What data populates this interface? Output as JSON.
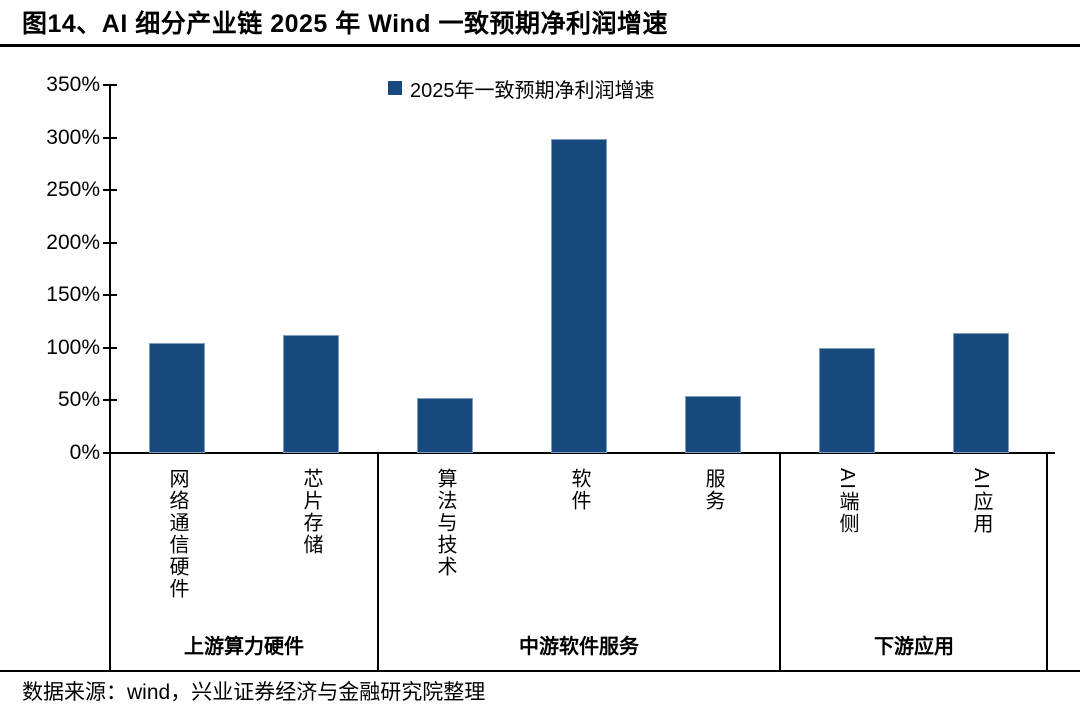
{
  "title": "图14、AI 细分产业链 2025 年 Wind 一致预期净利润增速",
  "source": "数据来源：wind，兴业证券经济与金融研究院整理",
  "colors": {
    "bar": "#17497E",
    "bar_edge": "#7F9FBF",
    "axis": "#000000"
  },
  "chart_data": {
    "type": "bar",
    "legend": "2025年一致预期净利润增速",
    "legend_position": "top-center",
    "categories": [
      "网络通信硬件",
      "芯片存储",
      "算法与技术",
      "软件",
      "服务",
      "AI端侧",
      "AI应用"
    ],
    "values": [
      105,
      112,
      52,
      299,
      54,
      100,
      114
    ],
    "unit": "%",
    "groups": [
      {
        "label": "上游算力硬件",
        "span": 2
      },
      {
        "label": "中游软件服务",
        "span": 3
      },
      {
        "label": "下游应用",
        "span": 2
      }
    ],
    "ylim": [
      0,
      350
    ],
    "ytick_step": 50,
    "ytick_labels": [
      "0%",
      "50%",
      "100%",
      "150%",
      "200%",
      "250%",
      "300%",
      "350%"
    ],
    "grid": false
  }
}
